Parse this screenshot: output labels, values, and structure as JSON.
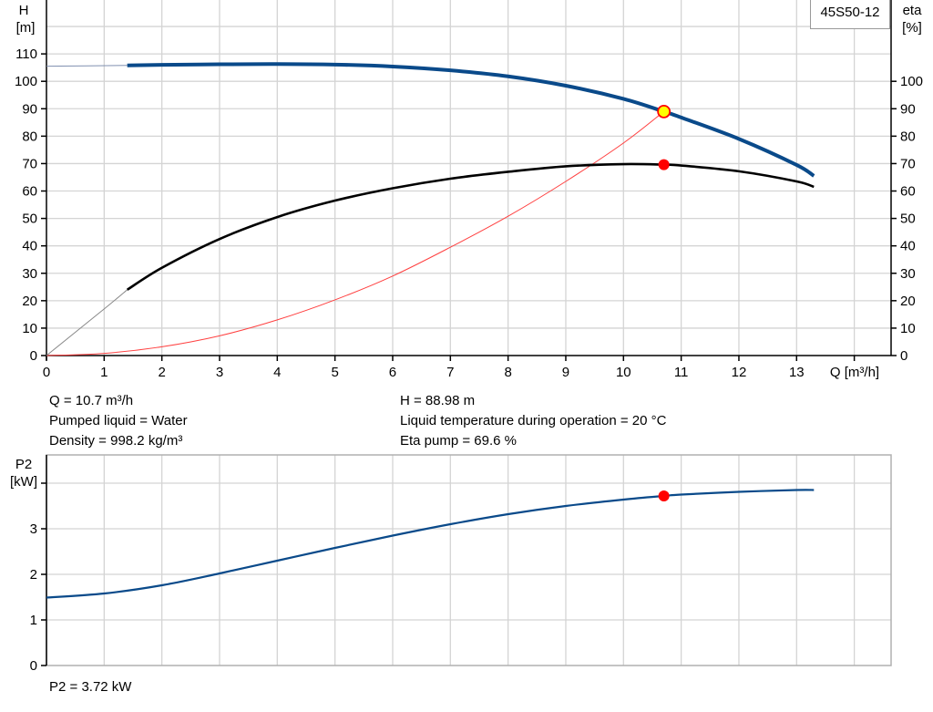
{
  "model": "45S50-12",
  "top_chart": {
    "y_left_label": [
      "H",
      "[m]"
    ],
    "y_right_label": [
      "eta",
      "[%]"
    ],
    "x_label": "Q [m³/h]"
  },
  "info_left": [
    "Q = 10.7 m³/h",
    "Pumped liquid = Water",
    "Density = 998.2 kg/m³"
  ],
  "info_right": [
    "H = 88.98 m",
    "Liquid temperature during operation = 20 °C",
    "Eta pump = 69.6 %"
  ],
  "bottom_chart": {
    "y_label": [
      "P2",
      "[kW]"
    ],
    "result": "P2 = 3.72 kW"
  },
  "colors": {
    "head_curve": "#0a4a8a",
    "eta_curve": "#000000",
    "system_curve": "#ff4040",
    "power_curve": "#0a4a8a",
    "duty_point": "#ff0000",
    "duty_point_fill": "#ffff00",
    "grid": "#d4d4d4"
  },
  "chart_data": [
    {
      "type": "line",
      "title": "45S50-12",
      "xlabel": "Q [m³/h]",
      "ylabel": "H [m]",
      "ylabel_right": "eta [%]",
      "xlim": [
        0,
        14
      ],
      "ylim": [
        0,
        110
      ],
      "x_ticks": [
        0,
        1,
        2,
        3,
        4,
        5,
        6,
        7,
        8,
        9,
        10,
        11,
        12,
        13
      ],
      "y_ticks_left": [
        0,
        10,
        20,
        30,
        40,
        50,
        60,
        70,
        80,
        90,
        100,
        110
      ],
      "y_ticks_right": [
        0,
        10,
        20,
        30,
        40,
        50,
        60,
        70,
        80,
        90,
        100
      ],
      "grid": true,
      "series": [
        {
          "name": "H",
          "axis": "left",
          "x": [
            0,
            1.4,
            2,
            3,
            4,
            5,
            6,
            7,
            8,
            9,
            10,
            10.7,
            11,
            12,
            13,
            13.3
          ],
          "y": [
            105.5,
            105.8,
            106.0,
            106.2,
            106.3,
            106.1,
            105.4,
            104.0,
            101.8,
            98.4,
            93.6,
            88.98,
            86.8,
            79.0,
            69.5,
            65.5
          ]
        },
        {
          "name": "eta",
          "axis": "right",
          "x": [
            0,
            1,
            1.4,
            2,
            3,
            4,
            5,
            6,
            7,
            8,
            9,
            10,
            10.7,
            11,
            12,
            13,
            13.3
          ],
          "y": [
            0,
            17,
            24,
            32,
            42.5,
            50.5,
            56.5,
            61,
            64.5,
            67,
            69,
            69.8,
            69.6,
            69.3,
            67.2,
            63.5,
            61.5
          ]
        },
        {
          "name": "system curve",
          "axis": "left",
          "x": [
            0,
            1,
            2,
            3,
            4,
            5,
            6,
            7,
            8,
            9,
            10,
            10.7
          ],
          "y": [
            0,
            0.8,
            3.2,
            7.2,
            13,
            20.3,
            29,
            39.5,
            50.8,
            63.5,
            77.5,
            88.98
          ]
        }
      ],
      "annotations": [
        {
          "label": "duty point H",
          "x": 10.7,
          "y": 88.98
        },
        {
          "label": "duty point eta",
          "x": 10.7,
          "y": 69.6
        }
      ]
    },
    {
      "type": "line",
      "xlabel": "Q [m³/h]",
      "ylabel": "P2 [kW]",
      "xlim": [
        0,
        14
      ],
      "ylim": [
        0,
        4.6
      ],
      "y_ticks": [
        0,
        1,
        2,
        3
      ],
      "grid": true,
      "series": [
        {
          "name": "P2",
          "x": [
            0,
            1,
            2,
            3,
            4,
            5,
            6,
            7,
            8,
            9,
            10,
            10.7,
            11,
            12,
            13,
            13.3
          ],
          "y": [
            1.49,
            1.58,
            1.76,
            2.02,
            2.3,
            2.58,
            2.85,
            3.1,
            3.32,
            3.5,
            3.64,
            3.72,
            3.75,
            3.81,
            3.85,
            3.85
          ]
        }
      ],
      "annotations": [
        {
          "label": "P2 = 3.72 kW",
          "x": 10.7,
          "y": 3.72
        }
      ]
    }
  ]
}
